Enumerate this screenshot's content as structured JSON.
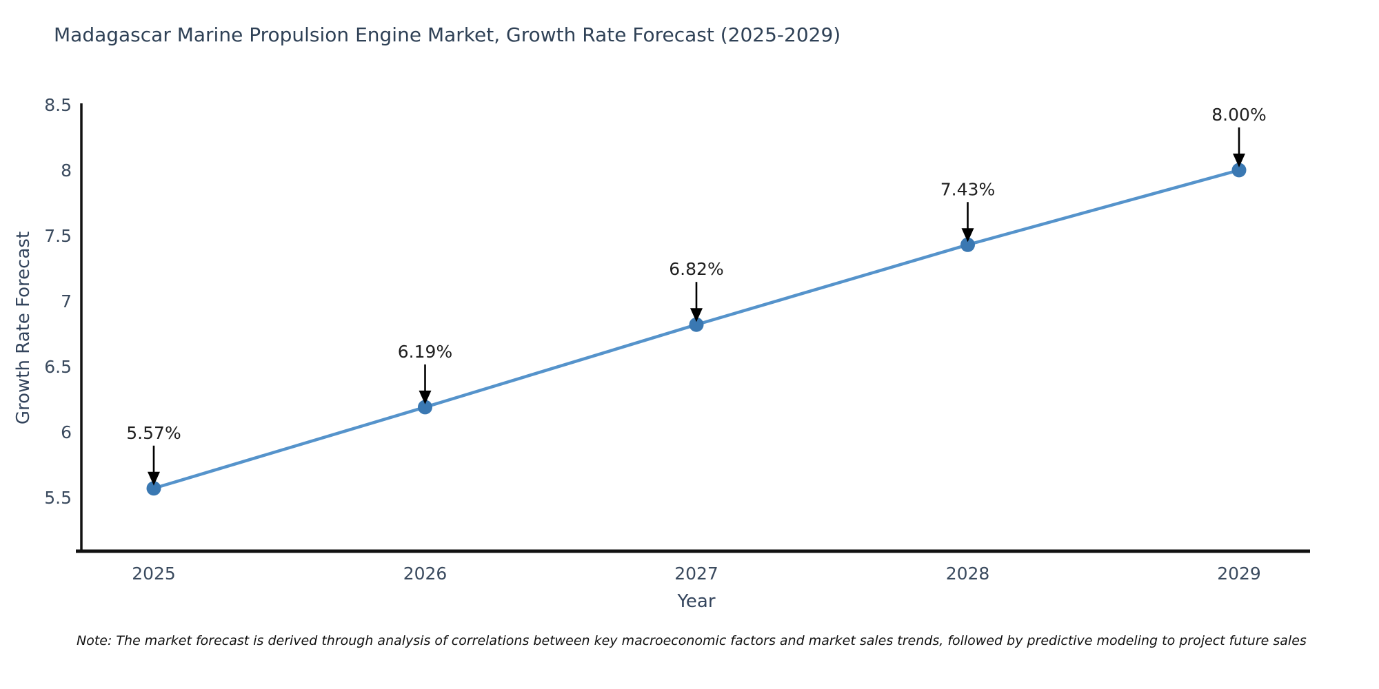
{
  "title": "Madagascar Marine Propulsion Engine Market, Growth Rate Forecast (2025-2029)",
  "note": "Note: The market forecast is derived through analysis of correlations between key macroeconomic factors and market sales trends, followed by predictive modeling to project future sales",
  "chart_data": {
    "type": "line",
    "x": [
      "2025",
      "2026",
      "2027",
      "2028",
      "2029"
    ],
    "series": [
      {
        "name": "Growth Rate Forecast",
        "values": [
          5.57,
          6.19,
          6.82,
          7.43,
          8.0
        ]
      }
    ],
    "point_labels": [
      "5.57%",
      "6.19%",
      "6.82%",
      "7.43%",
      "8.00%"
    ],
    "title": "Madagascar Marine Propulsion Engine Market, Growth Rate Forecast (2025-2029)",
    "xlabel": "Year",
    "ylabel": "Growth Rate Forecast",
    "yticks": [
      8.5,
      8,
      7.5,
      7,
      6.5,
      6,
      5.5
    ],
    "ytick_labels": [
      "8.5",
      "8",
      "7.5",
      "7",
      "6.5",
      "6",
      "5.5"
    ],
    "ylim": [
      5.09,
      8.51
    ],
    "grid": false,
    "legend": "none",
    "annotations": "each point labeled with percent value and downward black arrow",
    "colors": {
      "line": "#5593cb",
      "marker": "#3a78b2",
      "arrow": "#000000",
      "axis": "#111111",
      "tick_text": "#3a4a5e",
      "title_text": "#2f4156",
      "annotation_text": "#1f1f1f"
    }
  }
}
